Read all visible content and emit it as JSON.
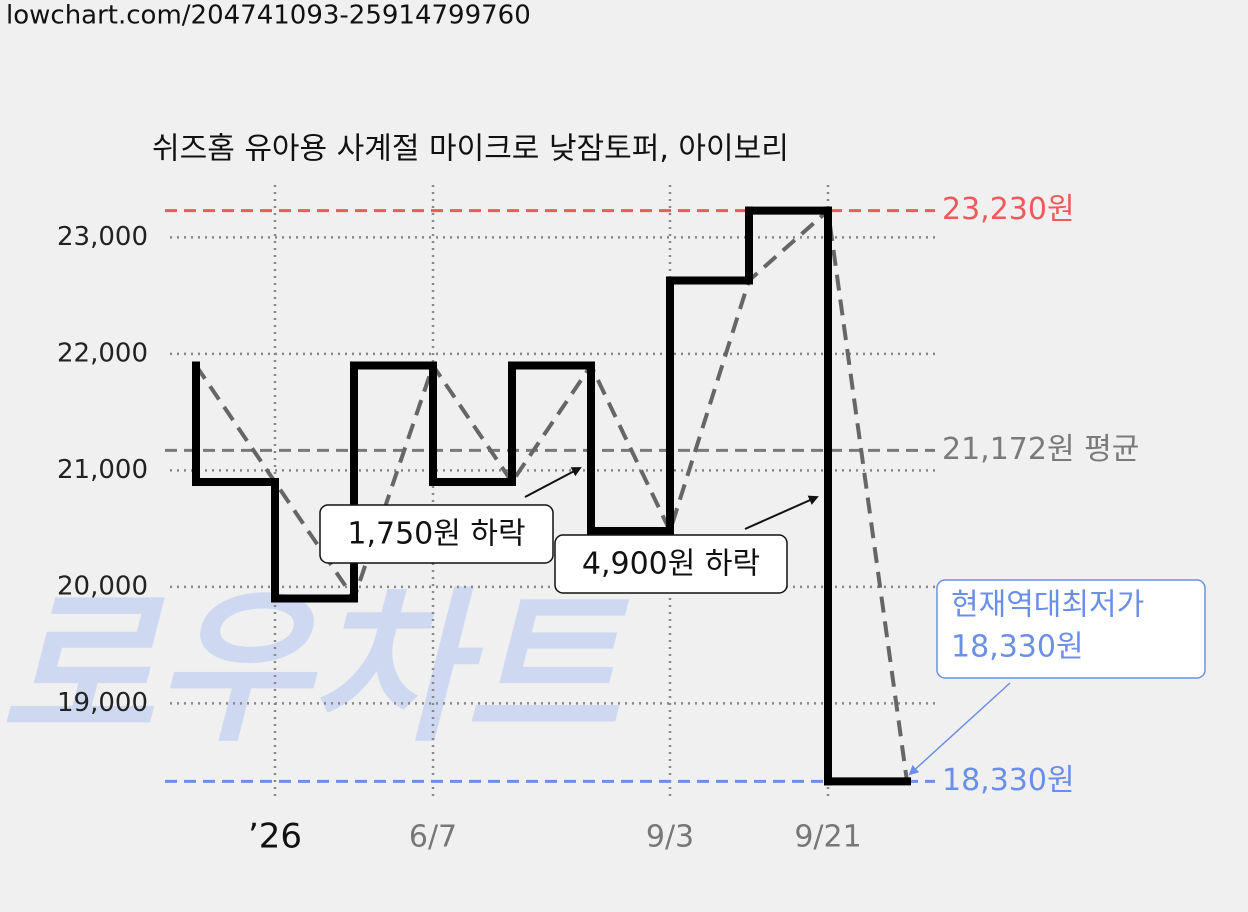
{
  "header": {
    "url": "lowchart.com/204741093-25914799760"
  },
  "chart_data": {
    "type": "step-line",
    "title": "쉬즈홈 유아용 사계절 마이크로 낮잠토퍼, 아이보리",
    "watermark": "로우차트",
    "categories": [
      null,
      "’26",
      null,
      "6/7",
      null,
      null,
      "9/3",
      null,
      "9/21",
      null
    ],
    "series": [
      {
        "color": "#000000",
        "trend_color": "#666666",
        "values": [
          21900,
          20900,
          19900,
          21900,
          20900,
          21900,
          20480,
          22630,
          23230,
          18330
        ]
      }
    ],
    "ylim": [
      18170,
      23450
    ],
    "yticks": [
      {
        "value": 19000,
        "label": "19,000"
      },
      {
        "value": 20000,
        "label": "20,000"
      },
      {
        "value": 21000,
        "label": "21,000"
      },
      {
        "value": 22000,
        "label": "22,000"
      },
      {
        "value": 23000,
        "label": "23,000"
      }
    ],
    "grid": true,
    "reference_lines": [
      {
        "value": 23230,
        "label": "23,230원",
        "color": "#ee5a5a"
      },
      {
        "value": 21172,
        "label": "21,172원 평균",
        "color": "#7a7a7a"
      },
      {
        "value": 18330,
        "label": "18,330원",
        "color": "#6b8fe6"
      }
    ],
    "annotations": [
      {
        "text": "1,750원 하락"
      },
      {
        "text": "4,900원 하락"
      },
      {
        "lines": [
          "현재역대최저가",
          "18,330원"
        ],
        "color": "#6b8fe6"
      }
    ]
  }
}
